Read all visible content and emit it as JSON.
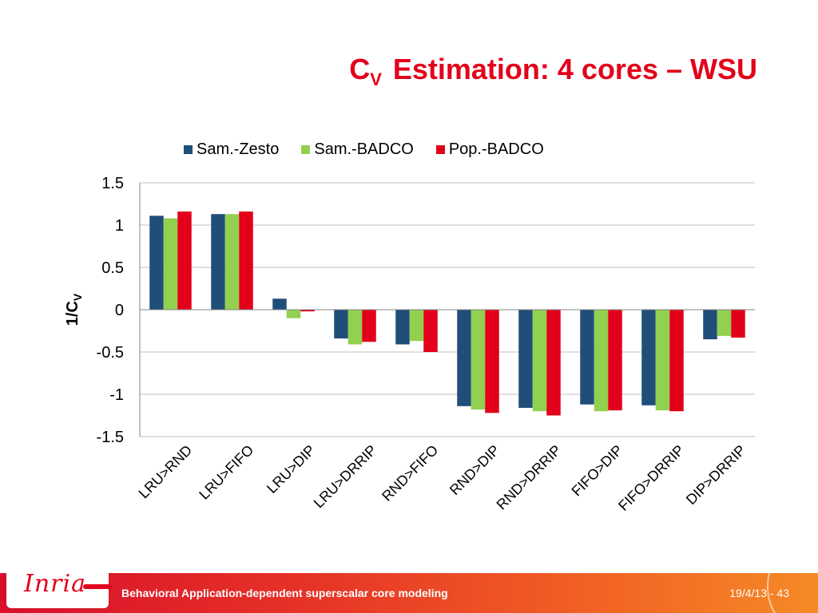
{
  "slide": {
    "title_prefix": "C",
    "title_subscript": "V",
    "title_rest": " Estimation: 4 cores – WSU"
  },
  "footer": {
    "logo_text": "Inria",
    "text": "Behavioral Application-dependent superscalar core modeling",
    "date_page": "19/4/13 - 43"
  },
  "colors": {
    "accent": "#e2001a",
    "series": [
      "#1f4e79",
      "#92d050",
      "#e2001a"
    ]
  },
  "chart_data": {
    "type": "bar",
    "ylabel_main": "1/C",
    "ylabel_sub": "V",
    "ylim": [
      -1.5,
      1.5
    ],
    "yticks": [
      "1.5",
      "1",
      "0.5",
      "0",
      "-0.5",
      "-1",
      "-1.5"
    ],
    "grid": true,
    "legend_position": "top",
    "categories": [
      "LRU>RND",
      "LRU>FIFO",
      "LRU>DIP",
      "LRU>DRRIP",
      "RND>FIFO",
      "RND>DIP",
      "RND>DRRIP",
      "FIFO>DIP",
      "FIFO>DRRIP",
      "DIP>DRRIP"
    ],
    "series": [
      {
        "name": "Sam.-Zesto",
        "values": [
          1.11,
          1.13,
          0.13,
          -0.34,
          -0.41,
          -1.14,
          -1.16,
          -1.12,
          -1.13,
          -0.35
        ]
      },
      {
        "name": "Sam.-BADCO",
        "values": [
          1.08,
          1.13,
          -0.1,
          -0.41,
          -0.37,
          -1.18,
          -1.2,
          -1.2,
          -1.19,
          -0.31
        ]
      },
      {
        "name": "Pop.-BADCO",
        "values": [
          1.16,
          1.16,
          -0.02,
          -0.38,
          -0.5,
          -1.22,
          -1.25,
          -1.19,
          -1.2,
          -0.33
        ]
      }
    ]
  }
}
